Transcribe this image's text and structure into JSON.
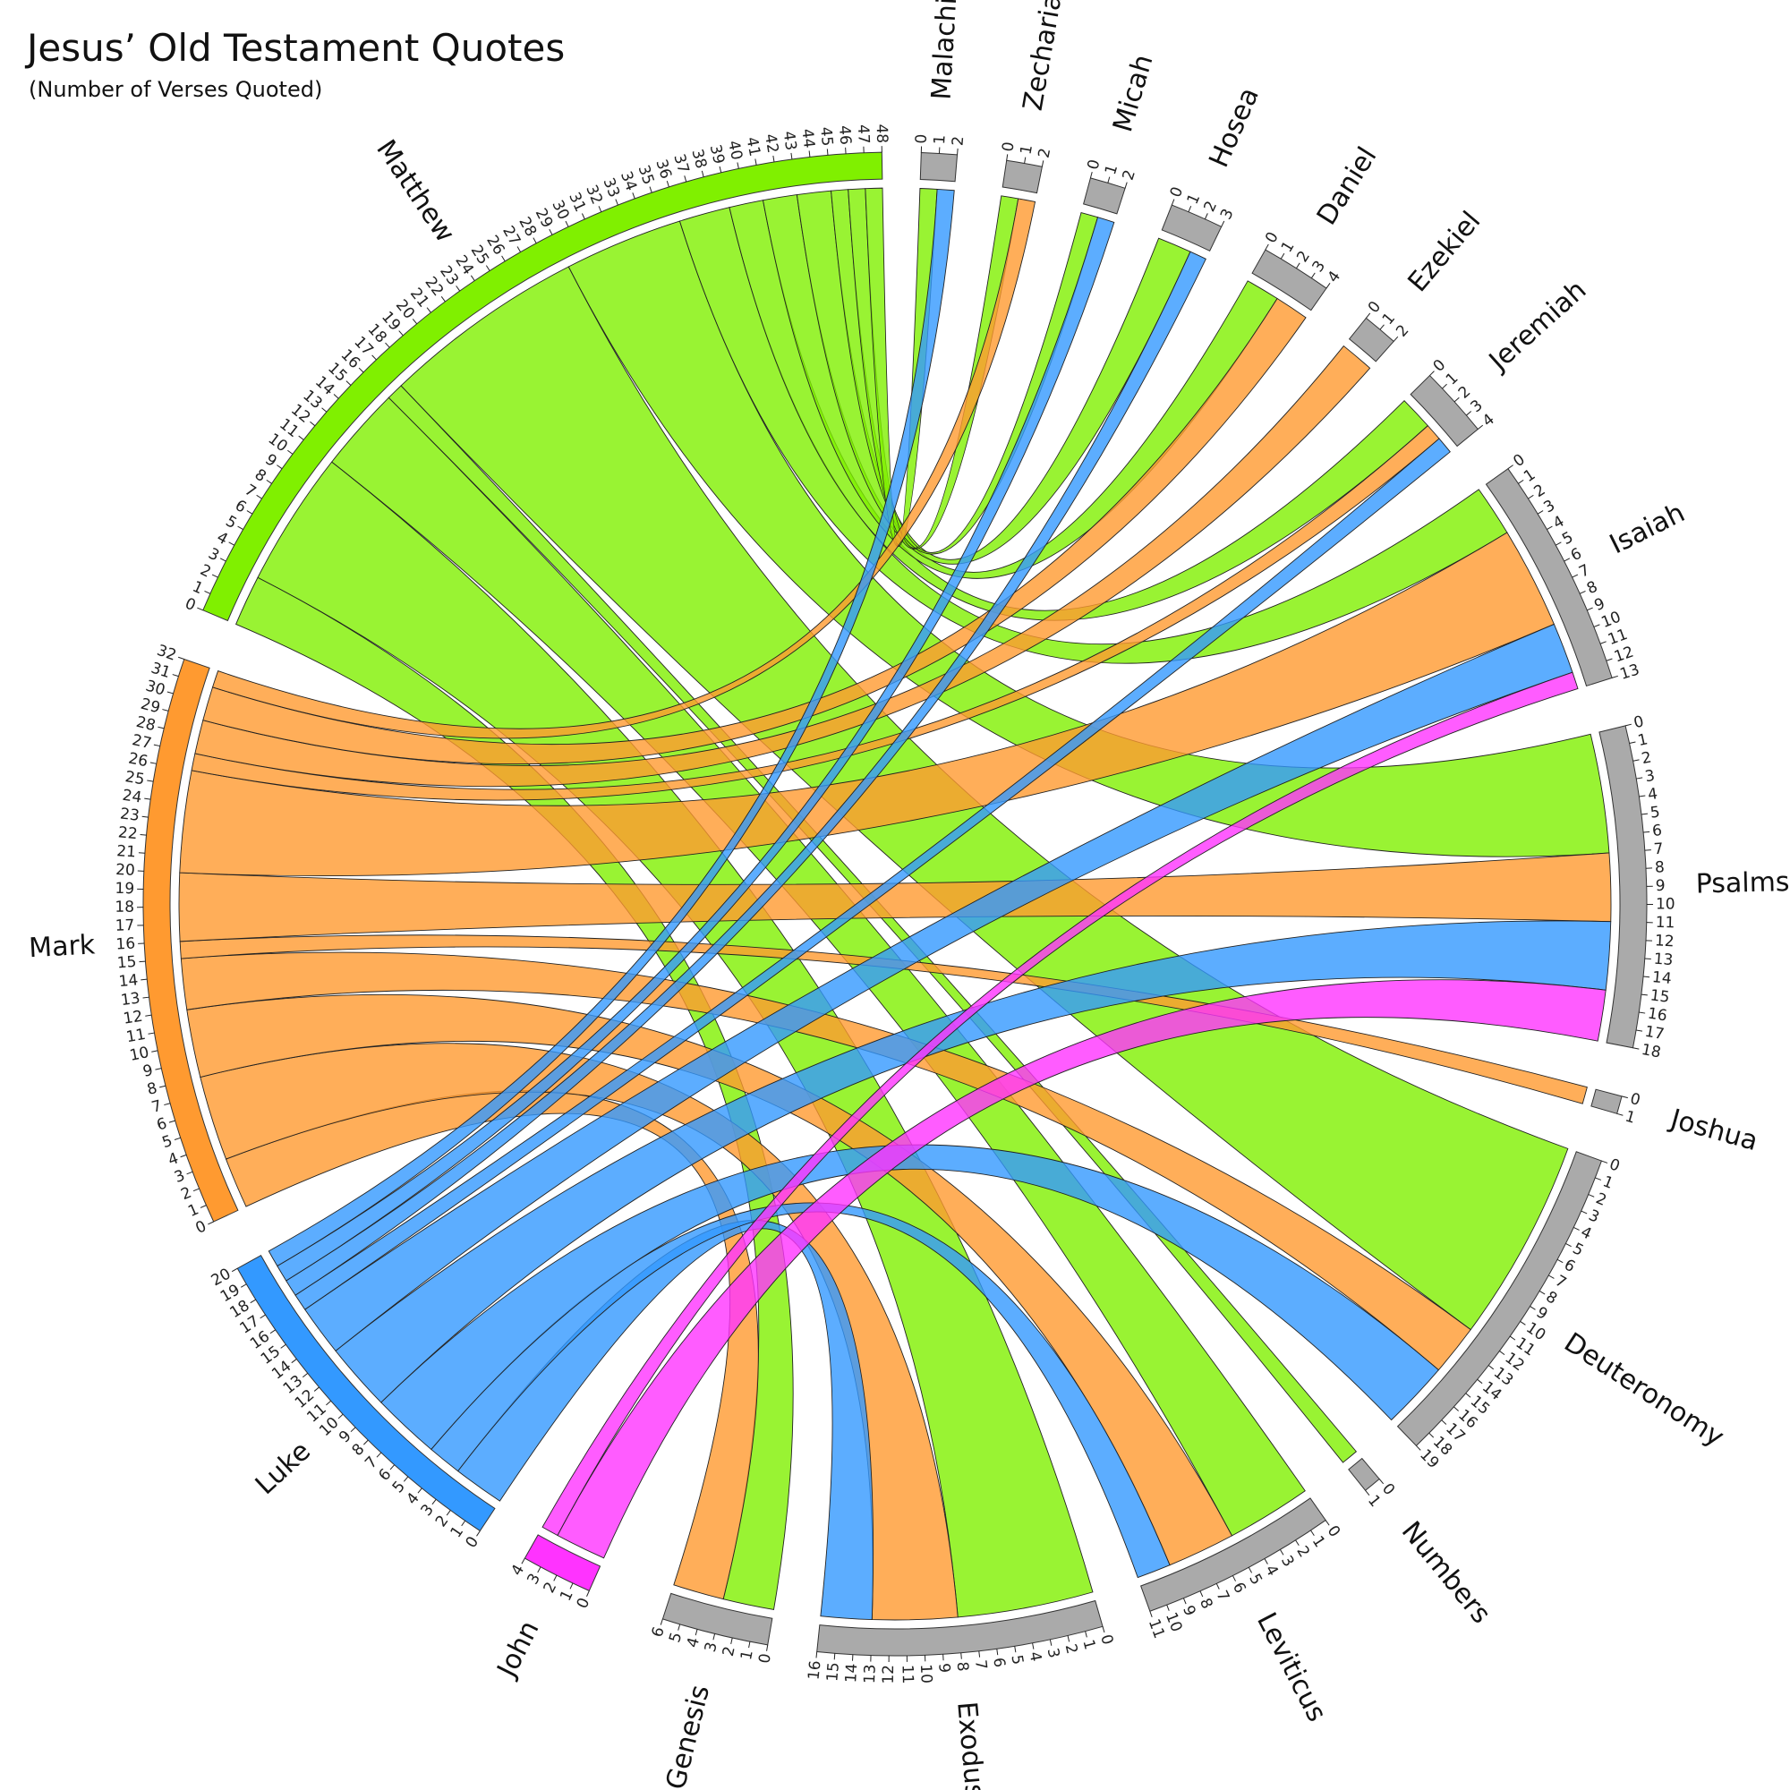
{
  "chart_data": {
    "type": "chord",
    "title": "Jesus’ Old Testament Quotes",
    "subtitle": "(Number of Verses Quoted)",
    "categories": [
      "Malachi",
      "Zechariah",
      "Micah",
      "Hosea",
      "Daniel",
      "Ezekiel",
      "Jeremiah",
      "Isaiah",
      "Psalms",
      "Joshua",
      "Deuteronomy",
      "Numbers",
      "Leviticus",
      "Exodus",
      "Genesis"
    ],
    "category_color": "#aaaaaa",
    "category_ticks": [
      [
        0,
        1,
        2
      ],
      [
        0,
        1,
        2
      ],
      [
        0,
        1,
        2
      ],
      [
        0,
        1,
        2,
        3
      ],
      [
        0,
        1,
        2,
        3,
        4
      ],
      [
        0,
        1,
        2
      ],
      [
        0,
        1,
        2,
        3,
        4
      ],
      [
        0,
        1,
        2,
        3,
        4,
        5,
        6,
        7,
        8,
        9,
        10,
        11,
        12,
        13
      ],
      [
        0,
        1,
        2,
        3,
        4,
        5,
        6,
        7,
        8,
        9,
        10,
        11,
        12,
        13,
        14,
        15,
        16,
        17,
        18
      ],
      [
        0,
        1
      ],
      [
        0,
        1,
        2,
        3,
        4,
        5,
        6,
        7,
        8,
        9,
        10,
        11,
        12,
        13,
        14,
        15,
        16,
        17,
        18,
        19
      ],
      [
        0,
        1
      ],
      [
        0,
        1,
        2,
        3,
        4,
        5,
        6,
        7,
        8,
        9,
        10,
        11
      ],
      [
        0,
        1,
        2,
        3,
        4,
        5,
        6,
        7,
        8,
        9,
        10,
        11,
        12,
        13,
        14,
        15,
        16
      ],
      [
        0,
        1,
        2,
        3,
        4,
        5,
        6
      ]
    ],
    "series": [
      {
        "name": "Matthew",
        "color": "#80f000",
        "values": [
          1,
          1,
          1,
          2,
          2,
          0,
          2,
          3,
          7,
          0,
          12,
          1,
          5,
          8,
          3
        ],
        "ticks": [
          0,
          1,
          2,
          3,
          4,
          5,
          6,
          7,
          8,
          9,
          10,
          11,
          12,
          13,
          14,
          15,
          16,
          17,
          18,
          19,
          20,
          21,
          22,
          23,
          24,
          25,
          26,
          27,
          28,
          29,
          30,
          31,
          32,
          33,
          34,
          35,
          36,
          37,
          38,
          39,
          40,
          41,
          42,
          43,
          44,
          45,
          46,
          47,
          48
        ]
      },
      {
        "name": "Mark",
        "color": "#ff9a30",
        "values": [
          0,
          1,
          0,
          0,
          2,
          2,
          1,
          6,
          4,
          1,
          3,
          0,
          4,
          5,
          3
        ],
        "ticks": [
          0,
          1,
          2,
          3,
          4,
          5,
          6,
          7,
          8,
          9,
          10,
          11,
          12,
          13,
          14,
          15,
          16,
          17,
          18,
          19,
          20,
          21,
          22,
          23,
          24,
          25,
          26,
          27,
          28,
          29,
          30,
          31,
          32
        ]
      },
      {
        "name": "Luke",
        "color": "#3399ff",
        "values": [
          1,
          0,
          1,
          1,
          0,
          0,
          1,
          3,
          4,
          0,
          4,
          0,
          2,
          3,
          0
        ],
        "ticks": [
          0,
          1,
          2,
          3,
          4,
          5,
          6,
          7,
          8,
          9,
          10,
          11,
          12,
          13,
          14,
          15,
          16,
          17,
          18,
          19,
          20
        ]
      },
      {
        "name": "John",
        "color": "#ff33ff",
        "values": [
          0,
          0,
          0,
          0,
          0,
          0,
          0,
          1,
          3,
          0,
          0,
          0,
          0,
          0,
          0
        ],
        "ticks": [
          0,
          1,
          2,
          3,
          4
        ]
      }
    ]
  }
}
